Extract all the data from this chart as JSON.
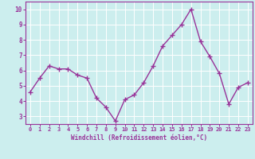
{
  "x": [
    0,
    1,
    2,
    3,
    4,
    5,
    6,
    7,
    8,
    9,
    10,
    11,
    12,
    13,
    14,
    15,
    16,
    17,
    18,
    19,
    20,
    21,
    22,
    23
  ],
  "y": [
    4.6,
    5.5,
    6.3,
    6.1,
    6.1,
    5.7,
    5.5,
    4.2,
    3.6,
    2.7,
    4.1,
    4.4,
    5.2,
    6.3,
    7.6,
    8.3,
    9.0,
    10.0,
    7.9,
    6.9,
    5.8,
    3.8,
    4.9,
    5.2
  ],
  "line_color": "#993399",
  "marker": "+",
  "marker_size": 4,
  "linewidth": 1.0,
  "background_color": "#cceeee",
  "grid_color": "#ffffff",
  "xlabel": "Windchill (Refroidissement éolien,°C)",
  "xlabel_color": "#993399",
  "tick_color": "#993399",
  "ylim": [
    2.5,
    10.5
  ],
  "xlim": [
    -0.5,
    23.5
  ],
  "yticks": [
    3,
    4,
    5,
    6,
    7,
    8,
    9,
    10
  ],
  "xticks": [
    0,
    1,
    2,
    3,
    4,
    5,
    6,
    7,
    8,
    9,
    10,
    11,
    12,
    13,
    14,
    15,
    16,
    17,
    18,
    19,
    20,
    21,
    22,
    23
  ]
}
